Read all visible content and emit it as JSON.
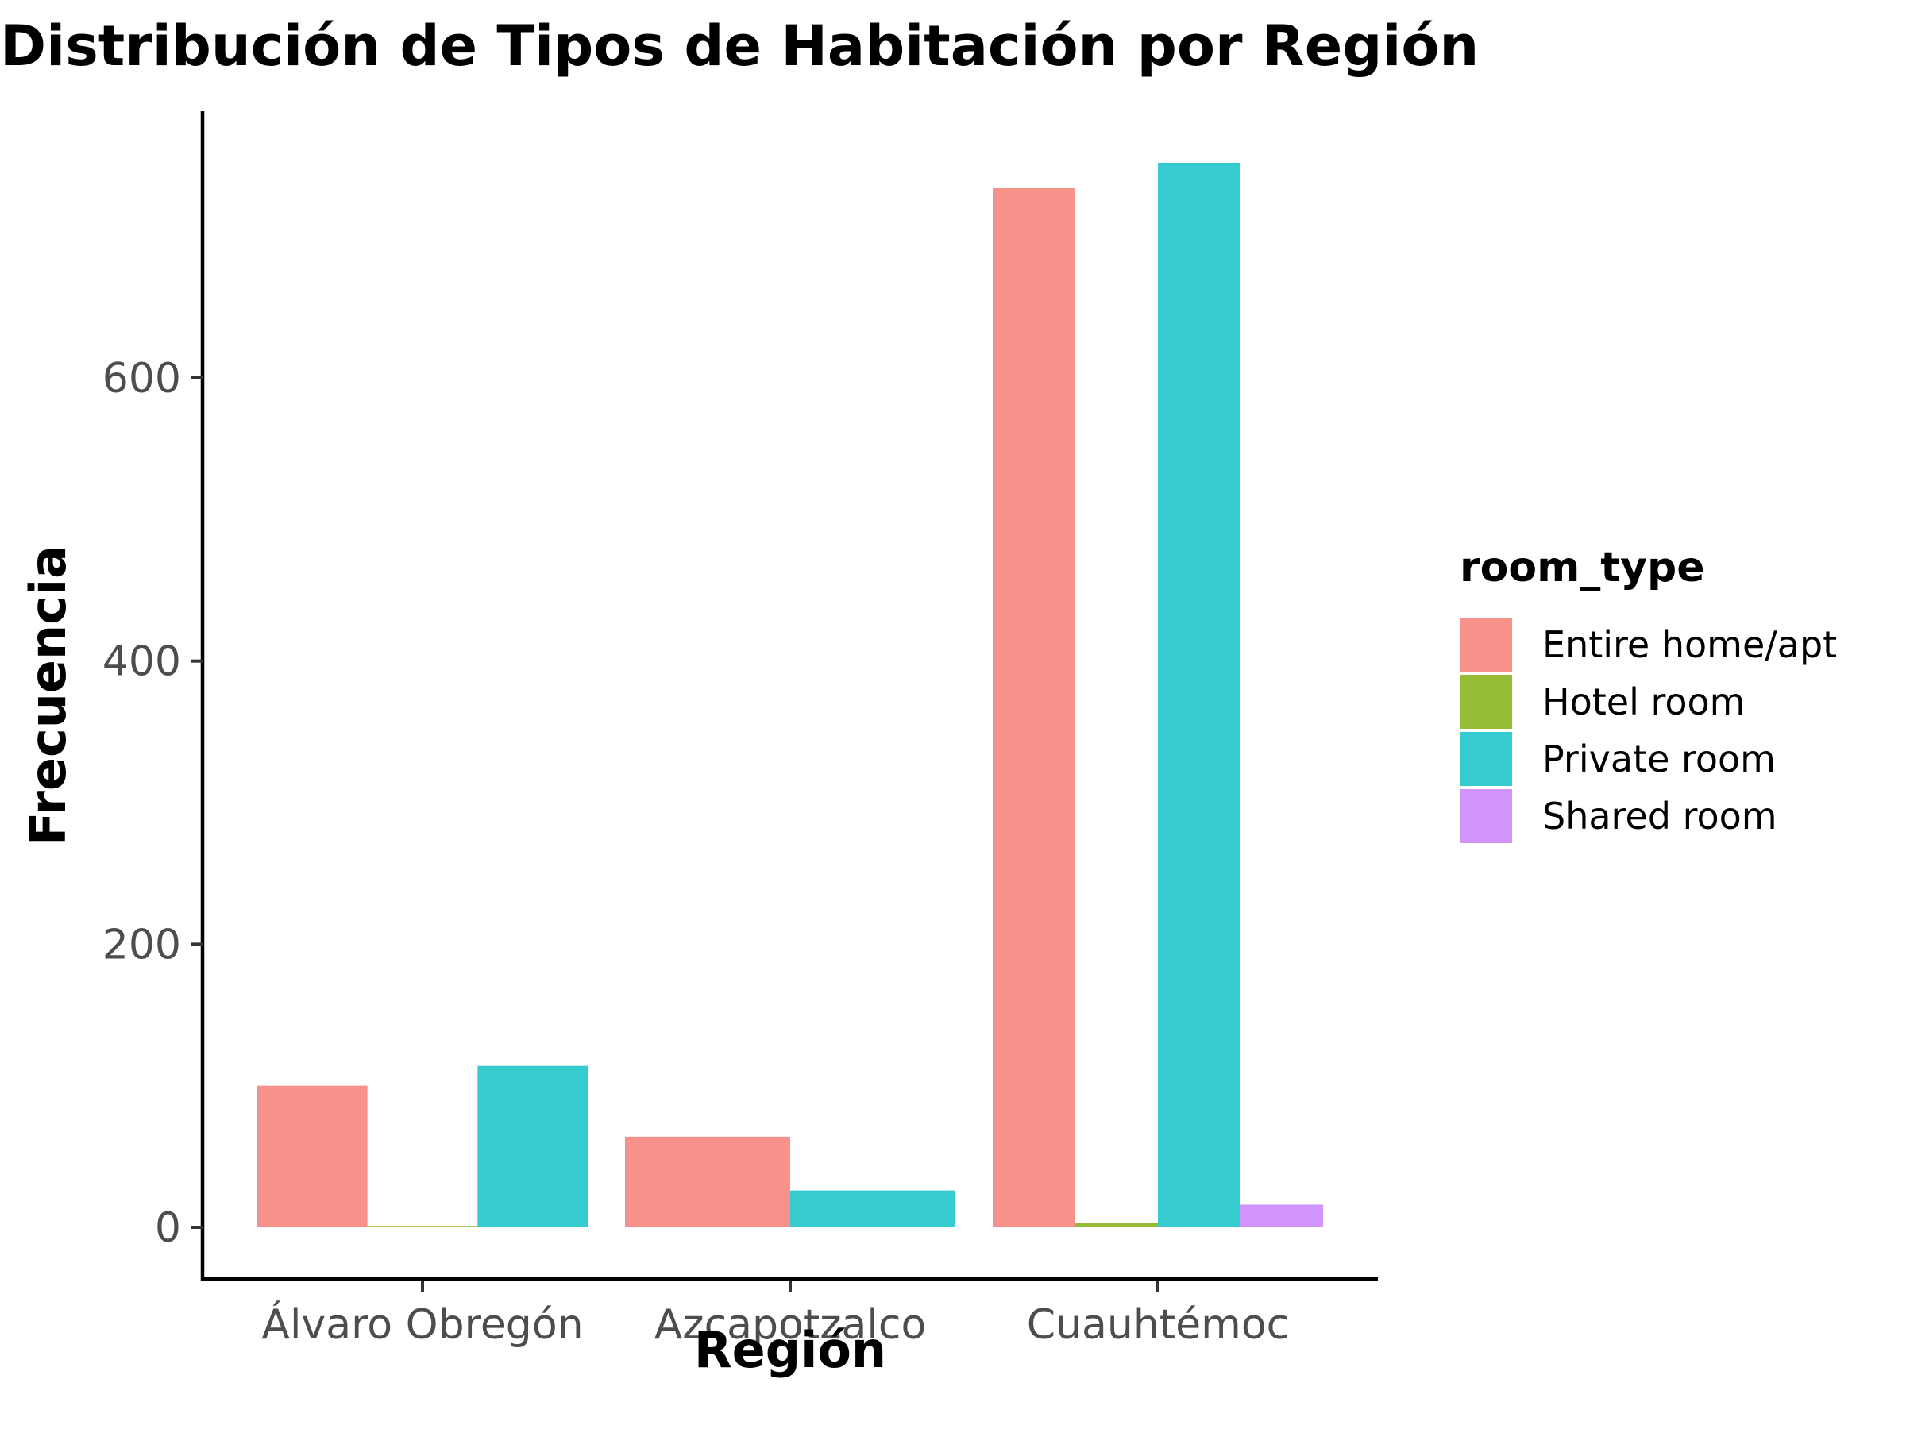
{
  "chart_data": {
    "type": "bar",
    "title": "Distribución de Tipos de Habitación por Región",
    "xlabel": "Región",
    "ylabel": "Frecuencia",
    "categories": [
      "Álvaro Obregón",
      "Azcapotzalco",
      "Cuauhtémoc"
    ],
    "ylim": [
      -37,
      785
    ],
    "yticks": [
      0,
      200,
      400,
      600
    ],
    "grid": false,
    "legend": {
      "title": "room_type",
      "placement": "right"
    },
    "series": [
      {
        "name": "Entire home/apt",
        "color": "#F8918A",
        "values": [
          100,
          64,
          734
        ]
      },
      {
        "name": "Hotel room",
        "color": "#96BC35",
        "values": [
          1,
          null,
          3
        ]
      },
      {
        "name": "Private room",
        "color": "#35CBCF",
        "values": [
          114,
          26,
          752
        ]
      },
      {
        "name": "Shared room",
        "color": "#D094FA",
        "values": [
          null,
          null,
          16
        ]
      }
    ]
  }
}
